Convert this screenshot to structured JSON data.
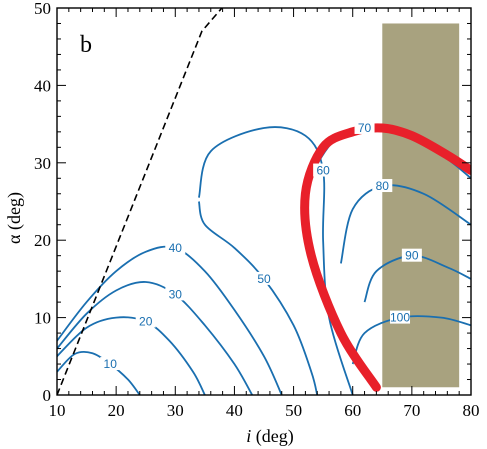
{
  "chart_data": {
    "type": "contour",
    "panel_label": "b",
    "xlabel_symbol": "i",
    "xlabel_unit": " (deg)",
    "ylabel": "α (deg)",
    "xlim": [
      10,
      80
    ],
    "ylim": [
      0,
      50
    ],
    "x_ticks": [
      10,
      20,
      30,
      40,
      50,
      60,
      70,
      80
    ],
    "y_ticks": [
      0,
      10,
      20,
      30,
      40,
      50
    ],
    "colors": {
      "contour": "#1a6fb0",
      "highlight": "#e8202a",
      "region": "#a8a27f",
      "boundary": "#000000"
    },
    "shaded_region": {
      "x": [
        65,
        78
      ],
      "y": [
        1,
        48
      ]
    },
    "boundary_line": [
      [
        10,
        0
      ],
      [
        34.5,
        47
      ],
      [
        39,
        51
      ]
    ],
    "contours": [
      {
        "level": 10,
        "label": "10",
        "points": [
          [
            10,
            3
          ],
          [
            13,
            5.3
          ],
          [
            16,
            5.4
          ],
          [
            19,
            4
          ],
          [
            22,
            2
          ],
          [
            24,
            0
          ]
        ]
      },
      {
        "level": 20,
        "label": "20",
        "points": [
          [
            10,
            5
          ],
          [
            15,
            8.7
          ],
          [
            20,
            10
          ],
          [
            25,
            9.5
          ],
          [
            29,
            7
          ],
          [
            33,
            3
          ],
          [
            35,
            0
          ]
        ]
      },
      {
        "level": 30,
        "label": "30",
        "points": [
          [
            10,
            6
          ],
          [
            15,
            10.5
          ],
          [
            20,
            13.5
          ],
          [
            25,
            14.6
          ],
          [
            30,
            13
          ],
          [
            35,
            9
          ],
          [
            40,
            4
          ],
          [
            43,
            0
          ]
        ]
      },
      {
        "level": 40,
        "label": "40",
        "points": [
          [
            10,
            7
          ],
          [
            15,
            12
          ],
          [
            20,
            16
          ],
          [
            25,
            18.5
          ],
          [
            30,
            19
          ],
          [
            35,
            16
          ],
          [
            40,
            11
          ],
          [
            45,
            5
          ],
          [
            48,
            0
          ]
        ]
      },
      {
        "level": 50,
        "label": "50",
        "points": [
          [
            34,
            25
          ],
          [
            35,
            22
          ],
          [
            40,
            19
          ],
          [
            45,
            15
          ],
          [
            50,
            9
          ],
          [
            53,
            3
          ],
          [
            54,
            0
          ]
        ]
      },
      {
        "level": 60,
        "label": "60",
        "points": [
          [
            34,
            25.5
          ],
          [
            36,
            31.5
          ],
          [
            45,
            34.5
          ],
          [
            52,
            33.5
          ],
          [
            55,
            29
          ],
          [
            55,
            20
          ],
          [
            56,
            10
          ],
          [
            60,
            0
          ]
        ]
      },
      {
        "level": 70,
        "label": "70",
        "points": [
          [
            52,
            22
          ],
          [
            53,
            28
          ],
          [
            57,
            33
          ],
          [
            62,
            34.5
          ],
          [
            67,
            34
          ],
          [
            75,
            31
          ],
          [
            80,
            28
          ]
        ]
      },
      {
        "level": 80,
        "label": "80",
        "points": [
          [
            58,
            17
          ],
          [
            60,
            24
          ],
          [
            65,
            27
          ],
          [
            72,
            26
          ],
          [
            80,
            22
          ]
        ]
      },
      {
        "level": 90,
        "label": "90",
        "points": [
          [
            62,
            12
          ],
          [
            64,
            16
          ],
          [
            70,
            18
          ],
          [
            76,
            16.5
          ],
          [
            80,
            15
          ]
        ]
      },
      {
        "level": 100,
        "label": "100",
        "points": [
          [
            60,
            4
          ],
          [
            62,
            8
          ],
          [
            68,
            10
          ],
          [
            75,
            10
          ],
          [
            80,
            9
          ]
        ]
      }
    ],
    "highlight_contour": {
      "points": [
        [
          64,
          1
        ],
        [
          58,
          8
        ],
        [
          53,
          18
        ],
        [
          52,
          26
        ],
        [
          55,
          32
        ],
        [
          60,
          34
        ],
        [
          65,
          34.5
        ],
        [
          70,
          33.5
        ],
        [
          76,
          31
        ],
        [
          80,
          29
        ]
      ]
    }
  }
}
